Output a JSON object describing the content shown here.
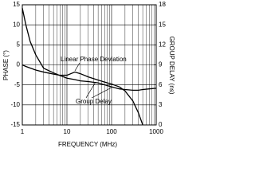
{
  "chart_data": {
    "type": "line",
    "x_label": "FREQUENCY (MHz)",
    "y_label": "PHASE (°)",
    "y2_label": "GROUP DELAY (ns)",
    "x": [
      1,
      1.2,
      1.5,
      2,
      3,
      5,
      7,
      10,
      15,
      20,
      30,
      50,
      70,
      100,
      150,
      200,
      300,
      400,
      500,
      700,
      1000
    ],
    "series": [
      {
        "name": "Linear Phase Deviation",
        "color": "#000000",
        "axis": "y",
        "values": [
          0,
          -0.4,
          -0.8,
          -1.3,
          -1.8,
          -2.3,
          -2.6,
          -2.6,
          -1.8,
          -2.2,
          -3,
          -3.8,
          -4.3,
          -4.8,
          -5.5,
          -6.5,
          -9,
          -12,
          -15,
          null,
          null
        ]
      },
      {
        "name": "Group Delay",
        "color": "#000000",
        "axis": "y2",
        "values": [
          17.5,
          15,
          12.5,
          10.5,
          8.5,
          7.8,
          7.4,
          7.0,
          6.8,
          6.6,
          6.5,
          6.3,
          6.0,
          5.7,
          5.4,
          5.3,
          5.2,
          5.2,
          5.3,
          5.4,
          5.5
        ]
      }
    ],
    "xscale": "log",
    "xlim": [
      1,
      1000
    ],
    "xticks": [
      1,
      10,
      100,
      1000
    ],
    "ylim": [
      -15,
      15
    ],
    "yticks": [
      -15,
      -10,
      -5,
      0,
      5,
      10,
      15
    ],
    "y2lim": [
      0,
      18
    ],
    "y2ticks": [
      0,
      3,
      6,
      9,
      12,
      15,
      18
    ],
    "grid": true
  }
}
